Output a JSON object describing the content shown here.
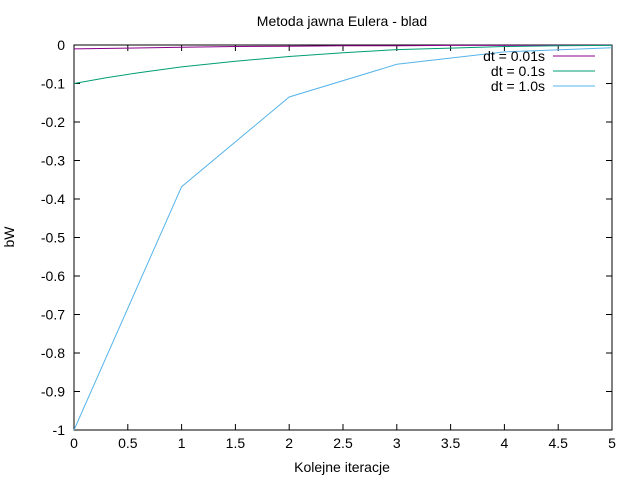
{
  "chart_data": {
    "type": "line",
    "title": "Metoda jawna Eulera - blad",
    "xlabel": "Kolejne iteracje",
    "ylabel": "bW",
    "xlim": [
      0,
      5
    ],
    "ylim": [
      -1,
      0
    ],
    "xticks": [
      "0",
      "0.5",
      "1",
      "1.5",
      "2",
      "2.5",
      "3",
      "3.5",
      "4",
      "4.5",
      "5"
    ],
    "yticks": [
      "0",
      "-0.1",
      "-0.2",
      "-0.3",
      "-0.4",
      "-0.5",
      "-0.6",
      "-0.7",
      "-0.8",
      "-0.9",
      "-1"
    ],
    "grid": false,
    "legend_position": "top-right",
    "series": [
      {
        "name": "dt = 0.01s",
        "color": "#8b008b",
        "x": [
          0,
          0.5,
          1,
          1.5,
          2,
          2.5,
          3,
          3.5,
          4,
          4.5,
          5
        ],
        "y": [
          -0.01,
          -0.008,
          -0.006,
          -0.004,
          -0.003,
          -0.002,
          -0.002,
          -0.001,
          -0.001,
          -0.001,
          -0.0007
        ]
      },
      {
        "name": "dt = 0.1s",
        "color": "#009e73",
        "x": [
          0,
          0.3,
          0.6,
          1,
          1.5,
          2,
          2.5,
          3,
          3.5,
          4,
          4.5,
          5
        ],
        "y": [
          -0.1,
          -0.085,
          -0.072,
          -0.057,
          -0.042,
          -0.03,
          -0.02,
          -0.012,
          -0.008,
          -0.004,
          -0.002,
          -0.001
        ]
      },
      {
        "name": "dt = 1.0s",
        "color": "#56b4e9",
        "x": [
          0,
          1,
          2,
          3,
          4,
          5
        ],
        "y": [
          -1,
          -0.368,
          -0.135,
          -0.05,
          -0.018,
          -0.007
        ]
      }
    ]
  }
}
